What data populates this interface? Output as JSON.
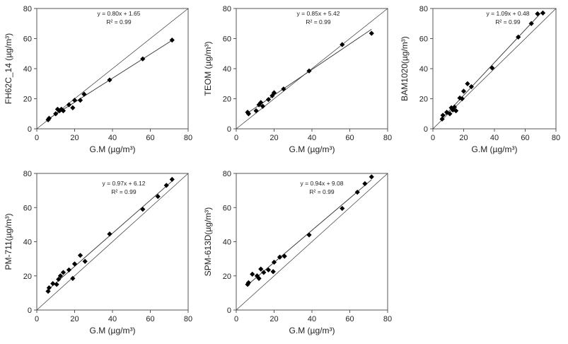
{
  "chart_data": [
    {
      "type": "scatter",
      "xlabel": "G.M (µg/m³)",
      "ylabel": "FH62C_14 (µg/m³)",
      "xlim": [
        0,
        80
      ],
      "ylim": [
        0,
        80
      ],
      "xticks": [
        "0",
        "20",
        "40",
        "60",
        "80"
      ],
      "yticks": [
        "0",
        "20",
        "40",
        "60",
        "80"
      ],
      "equation": "y = 0.80x + 1.65",
      "r2": "R² = 0.99",
      "fit": {
        "slope": 0.8,
        "intercept": 1.65
      },
      "identity_line": true,
      "points": [
        {
          "x": 6,
          "y": 6
        },
        {
          "x": 6.5,
          "y": 7
        },
        {
          "x": 10,
          "y": 10
        },
        {
          "x": 11,
          "y": 13
        },
        {
          "x": 12,
          "y": 12
        },
        {
          "x": 13,
          "y": 13
        },
        {
          "x": 14,
          "y": 12
        },
        {
          "x": 17,
          "y": 16
        },
        {
          "x": 19,
          "y": 14
        },
        {
          "x": 20,
          "y": 19
        },
        {
          "x": 23,
          "y": 19
        },
        {
          "x": 25,
          "y": 23
        },
        {
          "x": 38.5,
          "y": 32.5
        },
        {
          "x": 56,
          "y": 46.5
        },
        {
          "x": 71.5,
          "y": 59
        }
      ]
    },
    {
      "type": "scatter",
      "xlabel": "G.M (µg/m³)",
      "ylabel": "TEOM (µg/m³)",
      "xlim": [
        0,
        80
      ],
      "ylim": [
        0,
        80
      ],
      "xticks": [
        "0",
        "20",
        "40",
        "60",
        "80"
      ],
      "yticks": [
        "0",
        "20",
        "40",
        "60",
        "80"
      ],
      "equation": "y = 0.85x + 5.42",
      "r2": "R² = 0.99",
      "fit": {
        "slope": 0.85,
        "intercept": 5.42
      },
      "identity_line": true,
      "points": [
        {
          "x": 6,
          "y": 11
        },
        {
          "x": 6.5,
          "y": 10
        },
        {
          "x": 10.5,
          "y": 12
        },
        {
          "x": 12,
          "y": 16
        },
        {
          "x": 13,
          "y": 17.5
        },
        {
          "x": 14,
          "y": 15
        },
        {
          "x": 17,
          "y": 19.5
        },
        {
          "x": 19,
          "y": 22
        },
        {
          "x": 20,
          "y": 24
        },
        {
          "x": 25,
          "y": 26.5
        },
        {
          "x": 38.5,
          "y": 38.5
        },
        {
          "x": 56,
          "y": 56
        },
        {
          "x": 71.5,
          "y": 63.5
        }
      ]
    },
    {
      "type": "scatter",
      "xlabel": "G.M (µg/m³)",
      "ylabel": "BAM1020(µg/m³)",
      "xlim": [
        0,
        80
      ],
      "ylim": [
        0,
        80
      ],
      "xticks": [
        "0",
        "20",
        "40",
        "60",
        "80"
      ],
      "yticks": [
        "0",
        "20",
        "40",
        "60",
        "80"
      ],
      "equation": "y = 1.09x + 0.48",
      "r2": "R² = 0.99",
      "fit": {
        "slope": 1.09,
        "intercept": 0.48
      },
      "identity_line": true,
      "points": [
        {
          "x": 6,
          "y": 6.5
        },
        {
          "x": 6.5,
          "y": 9
        },
        {
          "x": 9,
          "y": 11
        },
        {
          "x": 11,
          "y": 10
        },
        {
          "x": 12,
          "y": 14
        },
        {
          "x": 13,
          "y": 12.5
        },
        {
          "x": 14,
          "y": 14.5
        },
        {
          "x": 15,
          "y": 12
        },
        {
          "x": 17.5,
          "y": 20.5
        },
        {
          "x": 19,
          "y": 20
        },
        {
          "x": 20,
          "y": 25
        },
        {
          "x": 22.5,
          "y": 30
        },
        {
          "x": 25,
          "y": 28
        },
        {
          "x": 38.5,
          "y": 40.5
        },
        {
          "x": 55.5,
          "y": 61
        },
        {
          "x": 64,
          "y": 70
        },
        {
          "x": 68,
          "y": 76.5
        },
        {
          "x": 71.5,
          "y": 77
        }
      ]
    },
    {
      "type": "scatter",
      "xlabel": "G.M (µg/m³)",
      "ylabel": "PM-711(µg/m³)",
      "xlim": [
        0,
        80
      ],
      "ylim": [
        0,
        80
      ],
      "xticks": [
        "0",
        "20",
        "40",
        "60",
        "80"
      ],
      "yticks": [
        "0",
        "20",
        "40",
        "60",
        "80"
      ],
      "equation": "y = 0.97x + 6.12",
      "r2": "R² = 0.99",
      "fit": {
        "slope": 0.97,
        "intercept": 6.12
      },
      "identity_line": true,
      "points": [
        {
          "x": 6,
          "y": 11
        },
        {
          "x": 6.5,
          "y": 13
        },
        {
          "x": 8.5,
          "y": 15.5
        },
        {
          "x": 10.5,
          "y": 15
        },
        {
          "x": 11.5,
          "y": 18
        },
        {
          "x": 12.5,
          "y": 20
        },
        {
          "x": 14,
          "y": 22
        },
        {
          "x": 17,
          "y": 23.5
        },
        {
          "x": 19,
          "y": 18.5
        },
        {
          "x": 20,
          "y": 27
        },
        {
          "x": 23,
          "y": 32
        },
        {
          "x": 25.5,
          "y": 28.5
        },
        {
          "x": 38.5,
          "y": 44.5
        },
        {
          "x": 56,
          "y": 59
        },
        {
          "x": 64,
          "y": 66.5
        },
        {
          "x": 68.5,
          "y": 73
        },
        {
          "x": 71.5,
          "y": 76.5
        }
      ]
    },
    {
      "type": "scatter",
      "xlabel": "G.M (µg/m³)",
      "ylabel": "SPM-613D(µg/m³)",
      "xlim": [
        0,
        80
      ],
      "ylim": [
        0,
        80
      ],
      "xticks": [
        "0",
        "20",
        "40",
        "60",
        "80"
      ],
      "yticks": [
        "0",
        "20",
        "40",
        "60",
        "80"
      ],
      "equation": "y = 0.94x + 9.08",
      "r2": "R² = 0.99",
      "fit": {
        "slope": 0.94,
        "intercept": 9.08
      },
      "identity_line": true,
      "points": [
        {
          "x": 6,
          "y": 15
        },
        {
          "x": 6.5,
          "y": 16
        },
        {
          "x": 8.5,
          "y": 21
        },
        {
          "x": 11,
          "y": 20
        },
        {
          "x": 12,
          "y": 18.5
        },
        {
          "x": 13,
          "y": 24
        },
        {
          "x": 14.5,
          "y": 22
        },
        {
          "x": 17,
          "y": 23.5
        },
        {
          "x": 19.5,
          "y": 22.5
        },
        {
          "x": 20,
          "y": 28
        },
        {
          "x": 23,
          "y": 31
        },
        {
          "x": 25.5,
          "y": 31.5
        },
        {
          "x": 38.5,
          "y": 44
        },
        {
          "x": 56,
          "y": 59.5
        },
        {
          "x": 64,
          "y": 69
        },
        {
          "x": 68,
          "y": 74
        },
        {
          "x": 71.5,
          "y": 78
        }
      ]
    }
  ]
}
